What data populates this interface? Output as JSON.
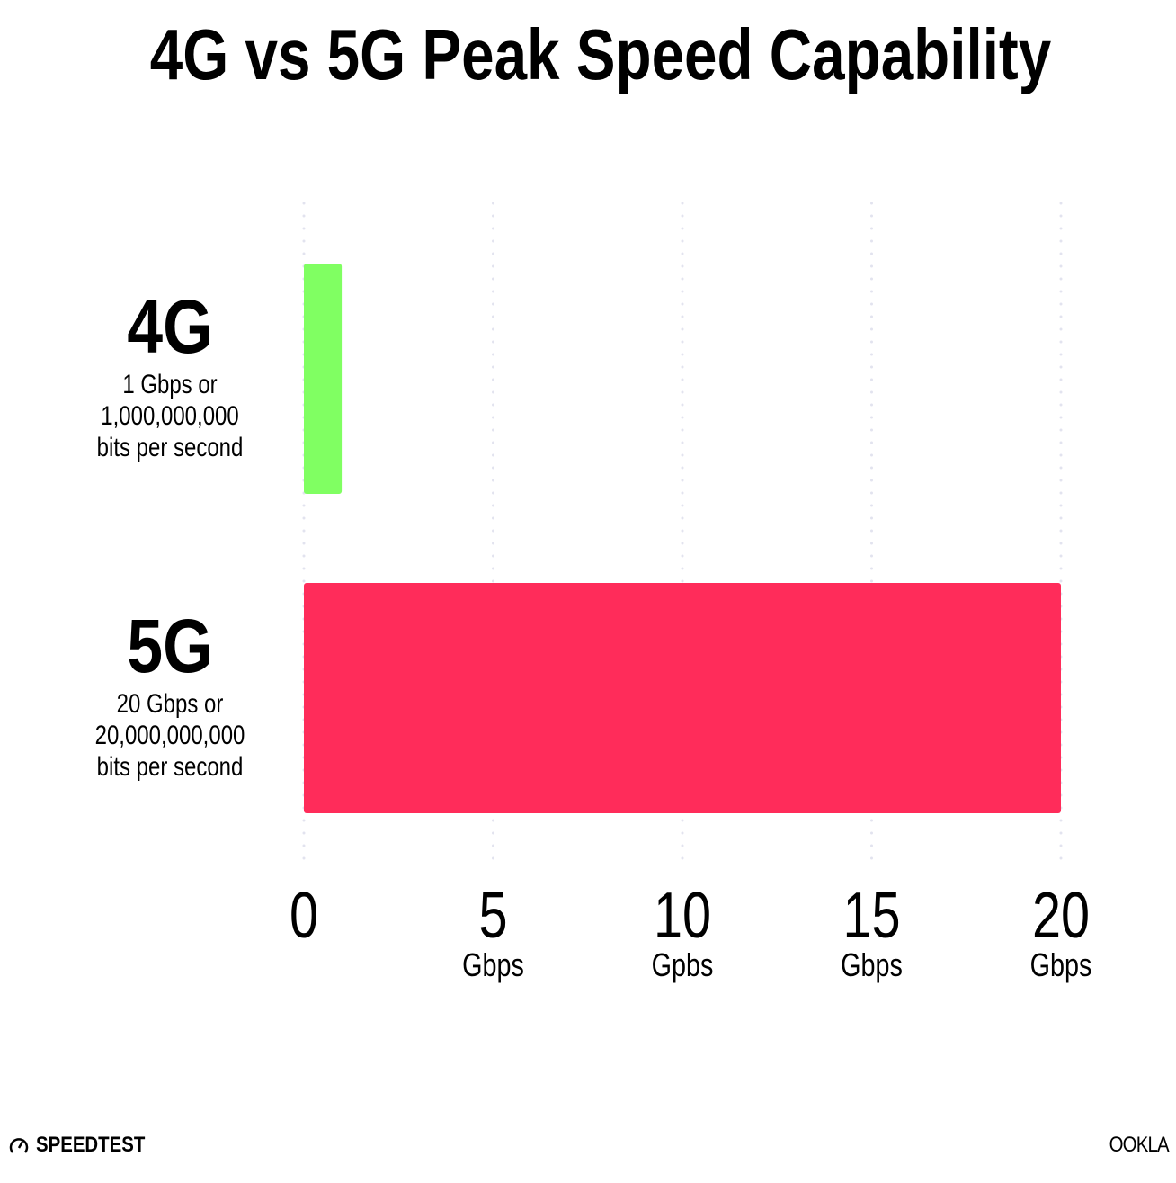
{
  "chart_data": {
    "type": "bar",
    "orientation": "horizontal",
    "title": "4G vs 5G Peak Speed Capability",
    "categories": [
      {
        "label": "4G",
        "sublabel": [
          "1 Gbps or",
          "1,000,000,000",
          "bits per second"
        ]
      },
      {
        "label": "5G",
        "sublabel": [
          "20 Gbps or",
          "20,000,000,000",
          "bits per second"
        ]
      }
    ],
    "values": [
      1,
      20
    ],
    "colors": [
      "#80ff62",
      "#ff2c5a"
    ],
    "xlim": [
      0,
      20
    ],
    "xticks": [
      {
        "value": 0,
        "label": "0",
        "unit": ""
      },
      {
        "value": 5,
        "label": "5",
        "unit": "Gbps"
      },
      {
        "value": 10,
        "label": "10",
        "unit": "Gpbs"
      },
      {
        "value": 15,
        "label": "15",
        "unit": "Gbps"
      },
      {
        "value": 20,
        "label": "20",
        "unit": "Gbps"
      }
    ],
    "grid": "vertical dotted",
    "grid_color": "#e2e3ef"
  },
  "branding": {
    "left": "SPEEDTEST",
    "right": "OOKLA"
  }
}
